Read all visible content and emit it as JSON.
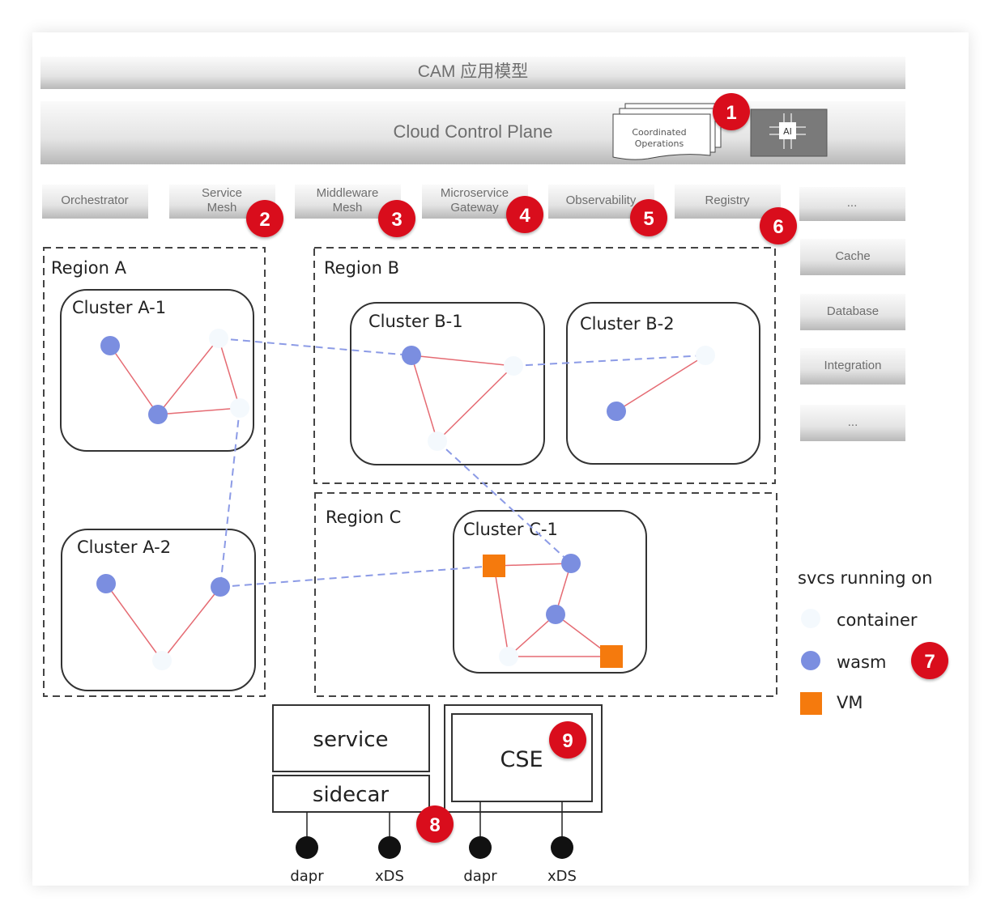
{
  "top": {
    "app_model": "CAM 应用模型",
    "control_plane": "Cloud Control Plane",
    "coordinated_ops": [
      "Coordinated",
      "Operations"
    ],
    "ai_chip": "AI"
  },
  "components": [
    {
      "lines": [
        "Orchestrator"
      ]
    },
    {
      "lines": [
        "Service",
        "Mesh"
      ]
    },
    {
      "lines": [
        "Middleware",
        "Mesh"
      ]
    },
    {
      "lines": [
        "Microservice",
        "Gateway"
      ]
    },
    {
      "lines": [
        "Observability"
      ]
    },
    {
      "lines": [
        "Registry"
      ]
    },
    {
      "lines": [
        "..."
      ]
    }
  ],
  "side_components": [
    "Cache",
    "Database",
    "Integration",
    "..."
  ],
  "regions": [
    "Region A",
    "Region B",
    "Region C"
  ],
  "clusters": [
    "Cluster A-1",
    "Cluster A-2",
    "Cluster B-1",
    "Cluster B-2",
    "Cluster C-1"
  ],
  "legend": {
    "title": "svcs running on",
    "items": [
      {
        "label": "container",
        "color": "#f4f9fd"
      },
      {
        "label": "wasm",
        "color": "#7b8ee0"
      },
      {
        "label": "VM",
        "color": "#f57a0d"
      }
    ]
  },
  "bottom": {
    "service": "service",
    "sidecar": "sidecar",
    "cse": "CSE",
    "ports": [
      "dapr",
      "xDS",
      "dapr",
      "xDS"
    ]
  },
  "badges": [
    "1",
    "2",
    "3",
    "4",
    "5",
    "6",
    "7",
    "8",
    "9"
  ],
  "colors": {
    "badge": "#d9101c",
    "edge": "#e56b73",
    "link": "#8c9be6",
    "wasm": "#7b8ee0",
    "vm": "#f57a0d",
    "container": "#f4f9fd"
  }
}
